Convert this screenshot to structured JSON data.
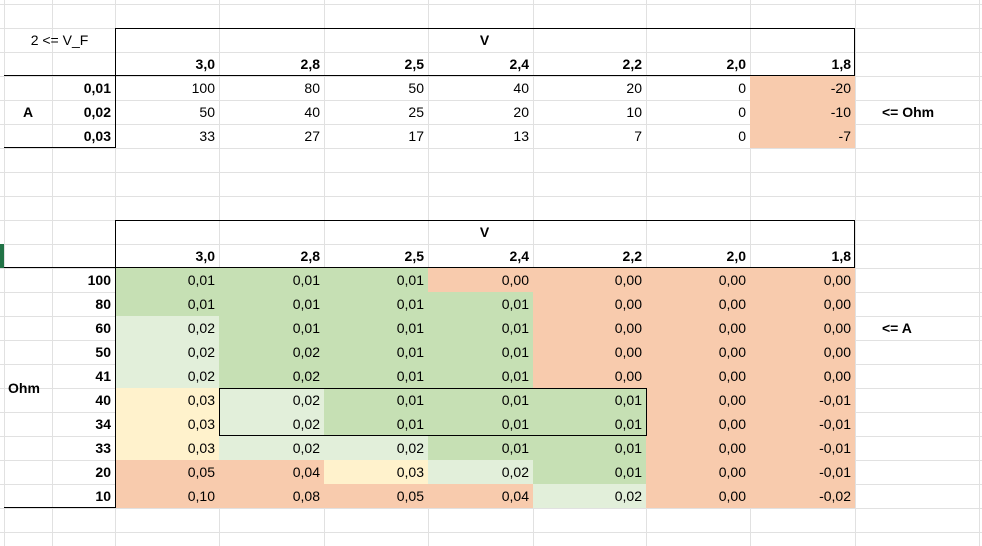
{
  "colors": {
    "green": "#c6e0b4",
    "light_green": "#e2efda",
    "yellow": "#fff2cc",
    "salmon": "#f8cbad"
  },
  "top": {
    "note": "2 <= V_F",
    "v_label": "V",
    "row_axis_label": "A",
    "side_note": "<= Ohm",
    "cols": [
      "3,0",
      "2,8",
      "2,5",
      "2,4",
      "2,2",
      "2,0",
      "1,8"
    ],
    "rows": [
      {
        "label": "0,01",
        "cells": [
          {
            "v": "100",
            "c": ""
          },
          {
            "v": "80",
            "c": ""
          },
          {
            "v": "50",
            "c": ""
          },
          {
            "v": "40",
            "c": ""
          },
          {
            "v": "20",
            "c": ""
          },
          {
            "v": "0",
            "c": ""
          },
          {
            "v": "-20",
            "c": "salmon"
          }
        ]
      },
      {
        "label": "0,02",
        "cells": [
          {
            "v": "50",
            "c": ""
          },
          {
            "v": "40",
            "c": ""
          },
          {
            "v": "25",
            "c": ""
          },
          {
            "v": "20",
            "c": ""
          },
          {
            "v": "10",
            "c": ""
          },
          {
            "v": "0",
            "c": ""
          },
          {
            "v": "-10",
            "c": "salmon"
          }
        ]
      },
      {
        "label": "0,03",
        "cells": [
          {
            "v": "33",
            "c": ""
          },
          {
            "v": "27",
            "c": ""
          },
          {
            "v": "17",
            "c": ""
          },
          {
            "v": "13",
            "c": ""
          },
          {
            "v": "7",
            "c": ""
          },
          {
            "v": "0",
            "c": ""
          },
          {
            "v": "-7",
            "c": "salmon"
          }
        ]
      }
    ]
  },
  "bottom": {
    "v_label": "V",
    "row_axis_label": "Ohm",
    "side_note": "<= A",
    "cols": [
      "3,0",
      "2,8",
      "2,5",
      "2,4",
      "2,2",
      "2,0",
      "1,8"
    ],
    "rows": [
      {
        "label": "100",
        "cells": [
          {
            "v": "0,01",
            "c": "green"
          },
          {
            "v": "0,01",
            "c": "green"
          },
          {
            "v": "0,01",
            "c": "green"
          },
          {
            "v": "0,00",
            "c": "salmon"
          },
          {
            "v": "0,00",
            "c": "salmon"
          },
          {
            "v": "0,00",
            "c": "salmon"
          },
          {
            "v": "0,00",
            "c": "salmon"
          }
        ]
      },
      {
        "label": "80",
        "cells": [
          {
            "v": "0,01",
            "c": "green"
          },
          {
            "v": "0,01",
            "c": "green"
          },
          {
            "v": "0,01",
            "c": "green"
          },
          {
            "v": "0,01",
            "c": "green"
          },
          {
            "v": "0,00",
            "c": "salmon"
          },
          {
            "v": "0,00",
            "c": "salmon"
          },
          {
            "v": "0,00",
            "c": "salmon"
          }
        ]
      },
      {
        "label": "60",
        "cells": [
          {
            "v": "0,02",
            "c": "light_green"
          },
          {
            "v": "0,01",
            "c": "green"
          },
          {
            "v": "0,01",
            "c": "green"
          },
          {
            "v": "0,01",
            "c": "green"
          },
          {
            "v": "0,00",
            "c": "salmon"
          },
          {
            "v": "0,00",
            "c": "salmon"
          },
          {
            "v": "0,00",
            "c": "salmon"
          }
        ]
      },
      {
        "label": "50",
        "cells": [
          {
            "v": "0,02",
            "c": "light_green"
          },
          {
            "v": "0,02",
            "c": "green"
          },
          {
            "v": "0,01",
            "c": "green"
          },
          {
            "v": "0,01",
            "c": "green"
          },
          {
            "v": "0,00",
            "c": "salmon"
          },
          {
            "v": "0,00",
            "c": "salmon"
          },
          {
            "v": "0,00",
            "c": "salmon"
          }
        ]
      },
      {
        "label": "41",
        "cells": [
          {
            "v": "0,02",
            "c": "light_green"
          },
          {
            "v": "0,02",
            "c": "green"
          },
          {
            "v": "0,01",
            "c": "green"
          },
          {
            "v": "0,01",
            "c": "green"
          },
          {
            "v": "0,00",
            "c": "salmon"
          },
          {
            "v": "0,00",
            "c": "salmon"
          },
          {
            "v": "0,00",
            "c": "salmon"
          }
        ]
      },
      {
        "label": "40",
        "cells": [
          {
            "v": "0,03",
            "c": "yellow"
          },
          {
            "v": "0,02",
            "c": "light_green"
          },
          {
            "v": "0,01",
            "c": "green"
          },
          {
            "v": "0,01",
            "c": "green"
          },
          {
            "v": "0,01",
            "c": "green"
          },
          {
            "v": "0,00",
            "c": "salmon"
          },
          {
            "v": "-0,01",
            "c": "salmon"
          }
        ]
      },
      {
        "label": "34",
        "cells": [
          {
            "v": "0,03",
            "c": "yellow"
          },
          {
            "v": "0,02",
            "c": "light_green"
          },
          {
            "v": "0,01",
            "c": "green"
          },
          {
            "v": "0,01",
            "c": "green"
          },
          {
            "v": "0,01",
            "c": "green"
          },
          {
            "v": "0,00",
            "c": "salmon"
          },
          {
            "v": "-0,01",
            "c": "salmon"
          }
        ]
      },
      {
        "label": "33",
        "cells": [
          {
            "v": "0,03",
            "c": "yellow"
          },
          {
            "v": "0,02",
            "c": "light_green"
          },
          {
            "v": "0,02",
            "c": "light_green"
          },
          {
            "v": "0,01",
            "c": "green"
          },
          {
            "v": "0,01",
            "c": "green"
          },
          {
            "v": "0,00",
            "c": "salmon"
          },
          {
            "v": "-0,01",
            "c": "salmon"
          }
        ]
      },
      {
        "label": "20",
        "cells": [
          {
            "v": "0,05",
            "c": "salmon"
          },
          {
            "v": "0,04",
            "c": "salmon"
          },
          {
            "v": "0,03",
            "c": "yellow"
          },
          {
            "v": "0,02",
            "c": "light_green"
          },
          {
            "v": "0,01",
            "c": "green"
          },
          {
            "v": "0,00",
            "c": "salmon"
          },
          {
            "v": "-0,01",
            "c": "salmon"
          }
        ]
      },
      {
        "label": "10",
        "cells": [
          {
            "v": "0,10",
            "c": "salmon"
          },
          {
            "v": "0,08",
            "c": "salmon"
          },
          {
            "v": "0,05",
            "c": "salmon"
          },
          {
            "v": "0,04",
            "c": "salmon"
          },
          {
            "v": "0,02",
            "c": "light_green"
          },
          {
            "v": "0,00",
            "c": "salmon"
          },
          {
            "v": "-0,02",
            "c": "salmon"
          }
        ]
      }
    ]
  }
}
